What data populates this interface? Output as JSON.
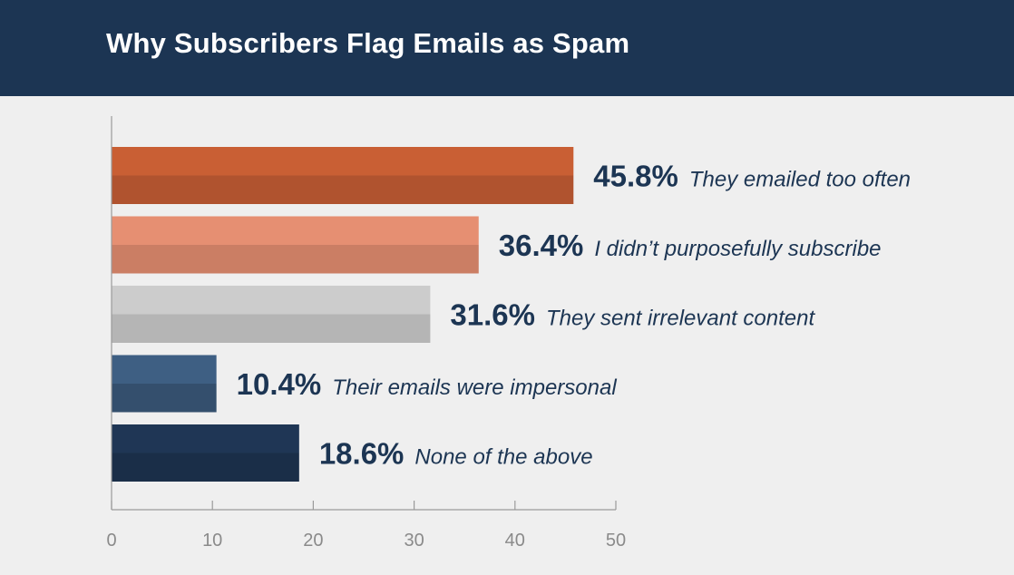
{
  "header": {
    "title": "Why Subscribers Flag Emails as Spam"
  },
  "colors": {
    "header_bg": "#1c3553",
    "background": "#efefef",
    "text_dark": "#1c3553",
    "axis": "#9a9a9a"
  },
  "chart_data": {
    "type": "bar",
    "orientation": "horizontal",
    "title": "Why Subscribers Flag Emails as Spam",
    "xlim": [
      0,
      50
    ],
    "x_ticks": [
      0,
      10,
      20,
      30,
      40,
      50
    ],
    "grid": false,
    "bars": [
      {
        "label": "They emailed too often",
        "value": 45.8,
        "value_label": "45.8%",
        "color_top": "#c95f34",
        "color_bottom": "#b0532f"
      },
      {
        "label": "I didn’t purposefully subscribe",
        "value": 36.4,
        "value_label": "36.4%",
        "color_top": "#e68f72",
        "color_bottom": "#cb7e64"
      },
      {
        "label": "They sent irrelevant content",
        "value": 31.6,
        "value_label": "31.6%",
        "color_top": "#cccccc",
        "color_bottom": "#b5b5b5"
      },
      {
        "label": "Their emails were impersonal",
        "value": 10.4,
        "value_label": "10.4%",
        "color_top": "#3e5f83",
        "color_bottom": "#344f6d"
      },
      {
        "label": "None of the above",
        "value": 18.6,
        "value_label": "18.6%",
        "color_top": "#1f3655",
        "color_bottom": "#1a2e48"
      }
    ]
  }
}
